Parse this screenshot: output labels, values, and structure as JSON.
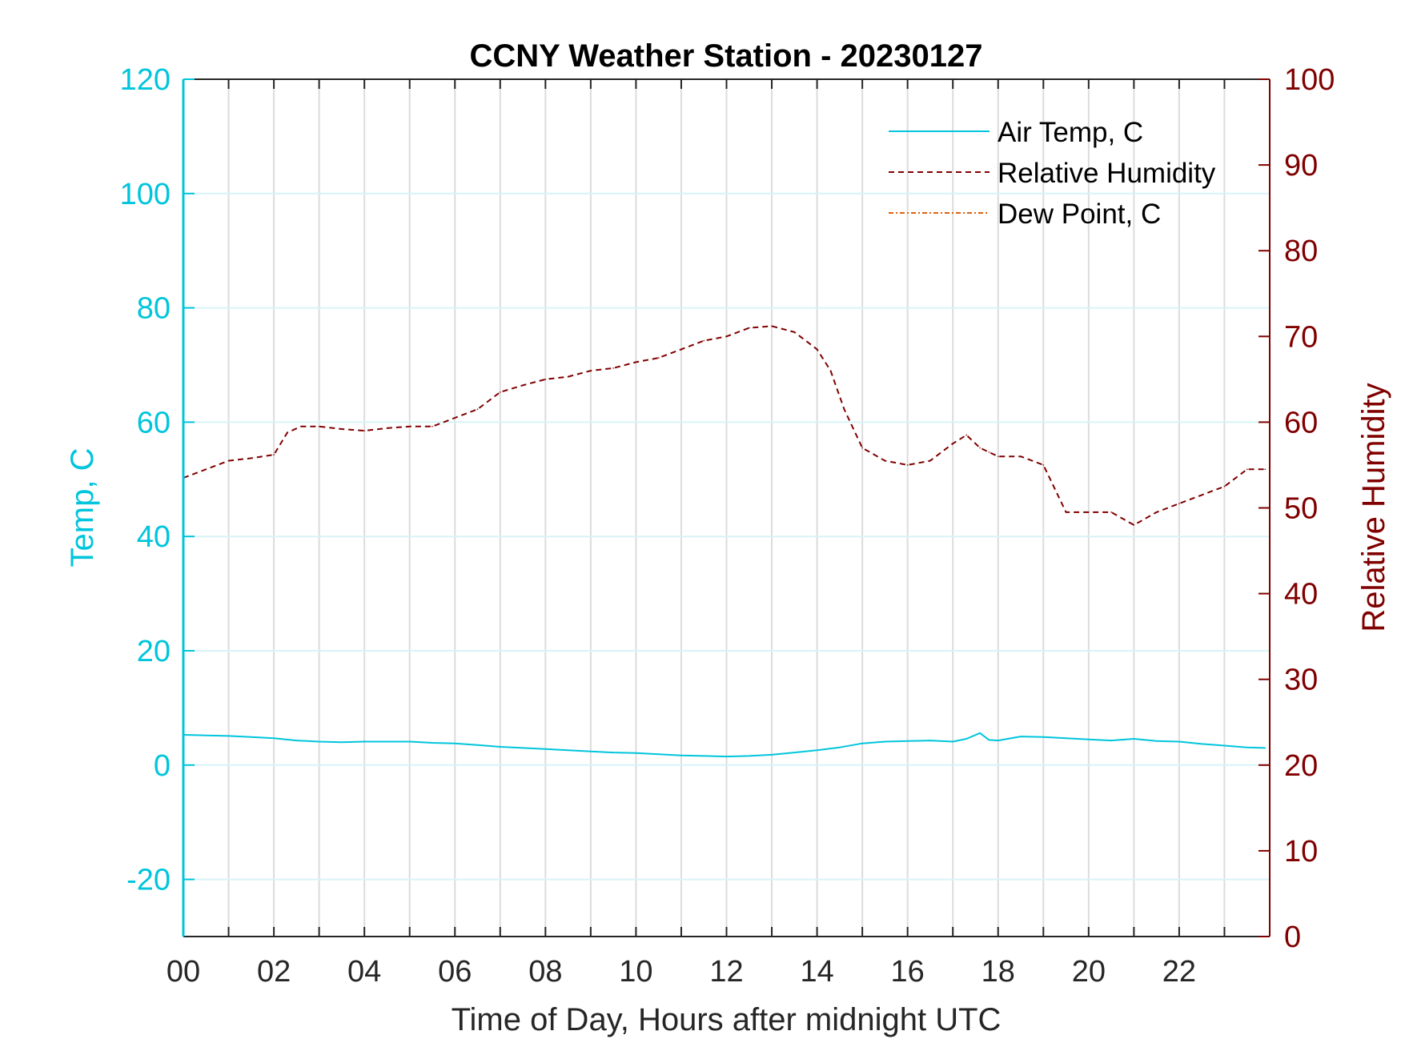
{
  "chart_data": {
    "type": "line",
    "title": "CCNY Weather Station - 20230127",
    "xlabel": "Time of Day, Hours after midnight UTC",
    "xlim": [
      0,
      24
    ],
    "x_ticks": [
      0,
      2,
      4,
      6,
      8,
      10,
      12,
      14,
      16,
      18,
      20,
      22
    ],
    "x_tick_labels": [
      "00",
      "02",
      "04",
      "06",
      "08",
      "10",
      "12",
      "14",
      "16",
      "18",
      "20",
      "22"
    ],
    "x_grid_step": 1,
    "left_axis": {
      "label": "Temp, C",
      "lim": [
        -30,
        120
      ],
      "ticks": [
        -20,
        0,
        20,
        40,
        60,
        80,
        100,
        120
      ],
      "tick_labels": [
        "-20",
        "0",
        "20",
        "40",
        "60",
        "80",
        "100",
        "120"
      ],
      "color": "#00c5dc"
    },
    "right_axis": {
      "label": "Relative Humidity",
      "lim": [
        0,
        100
      ],
      "ticks": [
        0,
        10,
        20,
        30,
        40,
        50,
        60,
        70,
        80,
        90,
        100
      ],
      "tick_labels": [
        "0",
        "10",
        "20",
        "30",
        "40",
        "50",
        "60",
        "70",
        "80",
        "90",
        "100"
      ],
      "color": "#800000"
    },
    "grid": true,
    "legend_position": "top-right",
    "series": [
      {
        "name": "Air Temp, C",
        "axis": "left",
        "color": "#00c5dc",
        "style": "solid",
        "x": [
          0,
          0.5,
          1,
          1.5,
          2,
          2.5,
          3,
          3.5,
          4,
          4.5,
          5,
          5.5,
          6,
          6.5,
          7,
          7.5,
          8,
          8.5,
          9,
          9.5,
          10,
          10.5,
          11,
          11.5,
          12,
          12.5,
          13,
          13.5,
          14,
          14.5,
          15,
          15.5,
          16,
          16.5,
          17,
          17.3,
          17.6,
          17.8,
          18,
          18.5,
          19,
          19.5,
          20,
          20.5,
          21,
          21.5,
          22,
          22.5,
          23,
          23.5,
          23.9
        ],
        "y": [
          5.3,
          5.2,
          5.1,
          4.9,
          4.7,
          4.3,
          4.1,
          4.0,
          4.1,
          4.1,
          4.1,
          3.9,
          3.8,
          3.5,
          3.2,
          3.0,
          2.8,
          2.6,
          2.4,
          2.2,
          2.1,
          1.9,
          1.7,
          1.6,
          1.5,
          1.6,
          1.8,
          2.2,
          2.6,
          3.1,
          3.8,
          4.1,
          4.2,
          4.3,
          4.1,
          4.6,
          5.6,
          4.4,
          4.3,
          5.0,
          4.9,
          4.7,
          4.5,
          4.3,
          4.6,
          4.2,
          4.1,
          3.7,
          3.4,
          3.1,
          3.0
        ]
      },
      {
        "name": "Relative Humidity",
        "axis": "right",
        "color": "#800000",
        "style": "dashed",
        "x": [
          0,
          0.5,
          1,
          1.5,
          2,
          2.3,
          2.6,
          3,
          3.5,
          4,
          4.5,
          5,
          5.5,
          6,
          6.5,
          7,
          7.5,
          8,
          8.5,
          9,
          9.5,
          10,
          10.5,
          11,
          11.5,
          12,
          12.5,
          13,
          13.5,
          14,
          14.3,
          14.6,
          15,
          15.5,
          16,
          16.5,
          17,
          17.3,
          17.6,
          17.8,
          18,
          18.5,
          19,
          19.5,
          20,
          20.5,
          21,
          21.5,
          22,
          22.5,
          23,
          23.5,
          23.9
        ],
        "y": [
          53.5,
          54.5,
          55.5,
          55.8,
          56.2,
          58.8,
          59.5,
          59.5,
          59.2,
          59.0,
          59.3,
          59.5,
          59.5,
          60.5,
          61.5,
          63.5,
          64.3,
          65.0,
          65.3,
          66.0,
          66.3,
          67.0,
          67.5,
          68.5,
          69.5,
          70.0,
          71.0,
          71.2,
          70.5,
          68.5,
          66.0,
          61.5,
          57.0,
          55.5,
          55.0,
          55.5,
          57.5,
          58.5,
          57.0,
          56.5,
          56.0,
          56.0,
          55.0,
          49.5,
          49.5,
          49.5,
          48.0,
          49.5,
          50.5,
          51.5,
          52.5,
          54.5,
          54.5
        ]
      },
      {
        "name": "Dew Point, C",
        "axis": "left",
        "color": "#e06010",
        "style": "dashdot",
        "x": [],
        "y": []
      }
    ]
  }
}
